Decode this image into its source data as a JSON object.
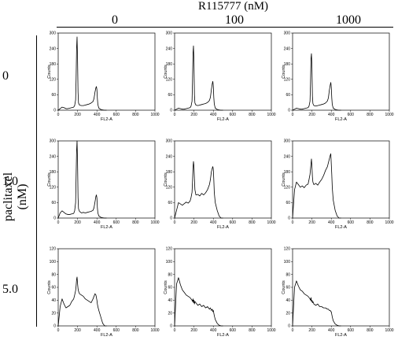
{
  "figure": {
    "top_title": "R115777 (nM)",
    "col_labels": [
      "0",
      "100",
      "1000"
    ],
    "side_title": "paclitaxel (nM)",
    "row_labels": [
      "0",
      "1.0",
      "5.0"
    ]
  },
  "chart_data": [
    {
      "type": "line",
      "row": "0",
      "col": "0",
      "xlabel": "FL2-A",
      "ylabel": "Counts",
      "xlim": [
        0,
        1000
      ],
      "ylim": [
        0,
        300
      ],
      "x": [
        0,
        20,
        40,
        60,
        80,
        100,
        120,
        140,
        160,
        170,
        180,
        185,
        190,
        195,
        200,
        205,
        210,
        220,
        240,
        260,
        280,
        300,
        320,
        340,
        360,
        370,
        380,
        390,
        395,
        400,
        405,
        410,
        420,
        440,
        460,
        480,
        500
      ],
      "y": [
        0,
        6,
        12,
        10,
        6,
        6,
        8,
        10,
        12,
        18,
        40,
        120,
        240,
        285,
        200,
        70,
        28,
        20,
        18,
        18,
        20,
        22,
        24,
        28,
        34,
        45,
        70,
        88,
        92,
        80,
        45,
        22,
        8,
        3,
        1,
        0,
        0
      ],
      "ticks_x": [
        0,
        200,
        400,
        600,
        800,
        1000
      ],
      "ticks_y": [
        0,
        60,
        120,
        180,
        240,
        300
      ]
    },
    {
      "type": "line",
      "row": "0",
      "col": "100",
      "xlabel": "FL2-A",
      "ylabel": "Counts",
      "xlim": [
        0,
        1000
      ],
      "ylim": [
        0,
        300
      ],
      "x": [
        0,
        20,
        40,
        60,
        80,
        100,
        120,
        140,
        160,
        170,
        180,
        185,
        190,
        195,
        200,
        205,
        210,
        220,
        240,
        260,
        280,
        300,
        320,
        340,
        360,
        370,
        380,
        390,
        395,
        400,
        405,
        410,
        420,
        440,
        460,
        480,
        500
      ],
      "y": [
        0,
        4,
        8,
        6,
        4,
        4,
        6,
        8,
        10,
        16,
        35,
        110,
        220,
        250,
        190,
        60,
        28,
        20,
        18,
        20,
        22,
        24,
        26,
        30,
        38,
        50,
        80,
        105,
        112,
        95,
        50,
        24,
        8,
        3,
        1,
        0,
        0
      ],
      "ticks_x": [
        0,
        200,
        400,
        600,
        800,
        1000
      ],
      "ticks_y": [
        0,
        60,
        120,
        180,
        240,
        300
      ]
    },
    {
      "type": "line",
      "row": "0",
      "col": "1000",
      "xlabel": "FL2-A",
      "ylabel": "Counts",
      "xlim": [
        0,
        1000
      ],
      "ylim": [
        0,
        300
      ],
      "x": [
        0,
        20,
        40,
        60,
        80,
        100,
        120,
        140,
        160,
        170,
        180,
        185,
        190,
        195,
        200,
        205,
        210,
        220,
        240,
        260,
        280,
        300,
        320,
        340,
        360,
        370,
        380,
        390,
        395,
        400,
        405,
        410,
        420,
        440,
        460,
        480,
        500
      ],
      "y": [
        0,
        4,
        8,
        6,
        4,
        4,
        6,
        8,
        10,
        16,
        35,
        100,
        200,
        220,
        170,
        55,
        26,
        18,
        16,
        18,
        20,
        22,
        24,
        28,
        36,
        48,
        78,
        100,
        108,
        90,
        48,
        22,
        8,
        3,
        1,
        0,
        0
      ],
      "ticks_x": [
        0,
        200,
        400,
        600,
        800,
        1000
      ],
      "ticks_y": [
        0,
        60,
        120,
        180,
        240,
        300
      ]
    },
    {
      "type": "line",
      "row": "1.0",
      "col": "0",
      "xlabel": "FL2-A",
      "ylabel": "Counts",
      "xlim": [
        0,
        1000
      ],
      "ylim": [
        0,
        300
      ],
      "x": [
        0,
        20,
        40,
        60,
        80,
        100,
        120,
        140,
        160,
        170,
        180,
        185,
        190,
        195,
        200,
        205,
        210,
        220,
        240,
        260,
        280,
        300,
        320,
        340,
        360,
        370,
        380,
        390,
        395,
        400,
        405,
        410,
        420,
        440,
        460,
        480,
        500
      ],
      "y": [
        0,
        20,
        28,
        22,
        16,
        14,
        14,
        16,
        18,
        28,
        60,
        160,
        260,
        300,
        220,
        80,
        36,
        26,
        20,
        22,
        20,
        22,
        24,
        26,
        30,
        40,
        62,
        85,
        90,
        78,
        40,
        20,
        8,
        3,
        1,
        0,
        0
      ],
      "ticks_x": [
        0,
        200,
        400,
        600,
        800,
        1000
      ],
      "ticks_y": [
        0,
        60,
        120,
        180,
        240,
        300
      ]
    },
    {
      "type": "line",
      "row": "1.0",
      "col": "100",
      "xlabel": "FL2-A",
      "ylabel": "Counts",
      "xlim": [
        0,
        1000
      ],
      "ylim": [
        0,
        300
      ],
      "x": [
        0,
        20,
        40,
        60,
        80,
        100,
        120,
        140,
        160,
        170,
        180,
        185,
        190,
        195,
        200,
        205,
        210,
        220,
        240,
        260,
        280,
        300,
        320,
        340,
        360,
        370,
        380,
        390,
        395,
        400,
        405,
        410,
        420,
        440,
        460,
        480,
        500
      ],
      "y": [
        0,
        30,
        60,
        55,
        50,
        56,
        62,
        58,
        66,
        80,
        100,
        140,
        195,
        220,
        200,
        150,
        110,
        90,
        92,
        86,
        96,
        90,
        98,
        110,
        130,
        150,
        180,
        195,
        200,
        190,
        150,
        100,
        60,
        30,
        8,
        0,
        0
      ],
      "ticks_x": [
        0,
        200,
        400,
        600,
        800,
        1000
      ],
      "ticks_y": [
        0,
        60,
        120,
        180,
        240,
        300
      ]
    },
    {
      "type": "line",
      "row": "1.0",
      "col": "1000",
      "xlabel": "FL2-A",
      "ylabel": "Counts",
      "xlim": [
        0,
        1000
      ],
      "ylim": [
        0,
        300
      ],
      "x": [
        0,
        20,
        40,
        60,
        80,
        100,
        120,
        140,
        160,
        170,
        180,
        185,
        190,
        195,
        200,
        205,
        210,
        220,
        240,
        260,
        280,
        300,
        320,
        340,
        360,
        370,
        380,
        390,
        395,
        400,
        405,
        410,
        420,
        440,
        460,
        480,
        500
      ],
      "y": [
        0,
        110,
        140,
        130,
        120,
        125,
        118,
        128,
        132,
        150,
        170,
        190,
        210,
        230,
        200,
        160,
        140,
        130,
        135,
        128,
        140,
        150,
        165,
        185,
        200,
        215,
        230,
        245,
        250,
        210,
        170,
        120,
        70,
        30,
        8,
        0,
        0
      ],
      "ticks_x": [
        0,
        200,
        400,
        600,
        800,
        1000
      ],
      "ticks_y": [
        0,
        60,
        120,
        180,
        240,
        300
      ]
    },
    {
      "type": "line",
      "row": "5.0",
      "col": "0",
      "xlabel": "FL2-A",
      "ylabel": "Counts",
      "xlim": [
        0,
        1000
      ],
      "ylim": [
        0,
        120
      ],
      "x": [
        0,
        20,
        40,
        60,
        80,
        100,
        120,
        140,
        160,
        170,
        180,
        185,
        190,
        195,
        200,
        205,
        210,
        220,
        240,
        260,
        280,
        300,
        320,
        340,
        360,
        370,
        380,
        390,
        395,
        400,
        405,
        410,
        420,
        440,
        460,
        480,
        500
      ],
      "y": [
        0,
        30,
        42,
        34,
        28,
        30,
        32,
        38,
        42,
        48,
        55,
        62,
        72,
        76,
        66,
        58,
        54,
        50,
        48,
        46,
        42,
        40,
        38,
        36,
        42,
        46,
        50,
        48,
        44,
        40,
        34,
        30,
        24,
        14,
        4,
        0,
        0
      ],
      "ticks_x": [
        0,
        200,
        400,
        600,
        800,
        1000
      ],
      "ticks_y": [
        0,
        20,
        40,
        60,
        80,
        100,
        120
      ]
    },
    {
      "type": "line",
      "row": "5.0",
      "col": "100",
      "xlabel": "FL2-A",
      "ylabel": "Counts",
      "xlim": [
        0,
        1000
      ],
      "ylim": [
        0,
        120
      ],
      "x": [
        0,
        20,
        40,
        60,
        80,
        100,
        120,
        140,
        160,
        170,
        180,
        185,
        190,
        195,
        200,
        205,
        210,
        220,
        240,
        260,
        280,
        300,
        320,
        340,
        360,
        370,
        380,
        390,
        395,
        400,
        405,
        410,
        420,
        440,
        460,
        480,
        500
      ],
      "y": [
        0,
        65,
        75,
        64,
        56,
        52,
        48,
        46,
        44,
        42,
        40,
        38,
        42,
        36,
        40,
        34,
        38,
        36,
        32,
        34,
        30,
        32,
        28,
        30,
        26,
        28,
        24,
        26,
        22,
        24,
        20,
        16,
        10,
        4,
        1,
        0,
        0
      ],
      "ticks_x": [
        0,
        200,
        400,
        600,
        800,
        1000
      ],
      "ticks_y": [
        0,
        20,
        40,
        60,
        80,
        100,
        120
      ]
    },
    {
      "type": "line",
      "row": "5.0",
      "col": "1000",
      "xlabel": "FL2-A",
      "ylabel": "Counts",
      "xlim": [
        0,
        1000
      ],
      "ylim": [
        0,
        120
      ],
      "x": [
        0,
        20,
        40,
        60,
        80,
        100,
        120,
        140,
        160,
        170,
        180,
        185,
        190,
        195,
        200,
        205,
        210,
        220,
        240,
        260,
        280,
        300,
        320,
        340,
        360,
        370,
        380,
        390,
        395,
        400,
        405,
        410,
        420,
        440,
        460,
        480,
        500
      ],
      "y": [
        0,
        60,
        70,
        62,
        56,
        54,
        50,
        48,
        46,
        44,
        42,
        40,
        44,
        38,
        40,
        36,
        38,
        34,
        32,
        34,
        30,
        30,
        28,
        28,
        26,
        26,
        24,
        24,
        22,
        22,
        18,
        14,
        8,
        3,
        1,
        0,
        0
      ],
      "ticks_x": [
        0,
        200,
        400,
        600,
        800,
        1000
      ],
      "ticks_y": [
        0,
        20,
        40,
        60,
        80,
        100,
        120
      ]
    }
  ]
}
